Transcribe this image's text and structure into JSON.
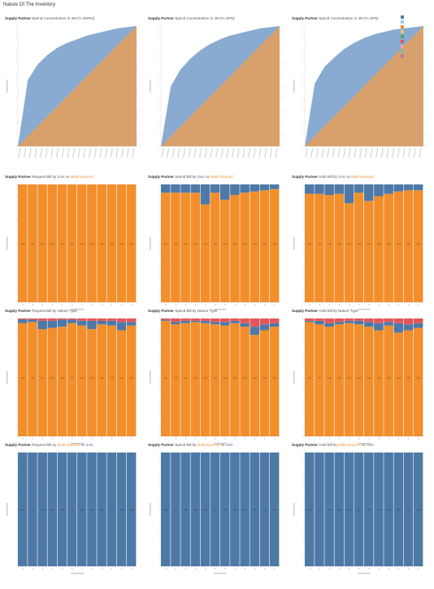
{
  "page_title": "Nature Of The Inventory",
  "colors": {
    "blue": "#4e79a7",
    "orange": "#f28e2b",
    "light_blue": "#89abd1",
    "tan": "#d8a06a",
    "red": "#e15759",
    "pink": "#ff9da7",
    "teal": "#76b7b2"
  },
  "legend": {
    "items": [
      {
        "label": "",
        "color": "#4e79a7"
      },
      {
        "label": "",
        "color": "#a0cbe8"
      },
      {
        "label": "",
        "color": "#f28e2b"
      },
      {
        "label": "",
        "color": "#ffbe7d"
      },
      {
        "label": "",
        "color": "#59a14f"
      },
      {
        "label": "",
        "color": "#e15759"
      },
      {
        "label": "",
        "color": "#ff9da7"
      },
      {
        "label": "",
        "color": "#76b7b2"
      },
      {
        "label": "",
        "color": "#b07aa1"
      },
      {
        "label": "",
        "color": "#d8a06a"
      }
    ]
  },
  "panels": [
    {
      "title_bold": "Supply Partner",
      "title_rest": "Spend Concentration in 4M (% 2WRU)",
      "accent_a": "",
      "accent_b": "",
      "chart_data": {
        "type": "area",
        "style": "concentration",
        "series": [
          {
            "values": [
              0,
              0.55,
              0.68,
              0.76,
              0.82,
              0.86,
              0.89,
              0.92,
              0.94,
              0.96,
              0.98,
              0.99,
              1.0
            ]
          }
        ],
        "ylim": [
          0,
          1
        ]
      }
    },
    {
      "title_bold": "Supply Partner",
      "title_rest": "Spend Concentration in 4M (% SPN)",
      "accent_a": "",
      "accent_b": "",
      "chart_data": {
        "type": "area",
        "style": "concentration",
        "series": [
          {
            "values": [
              0,
              0.5,
              0.64,
              0.73,
              0.8,
              0.85,
              0.89,
              0.92,
              0.94,
              0.96,
              0.98,
              0.99,
              1.0
            ]
          }
        ],
        "ylim": [
          0,
          1
        ]
      }
    },
    {
      "title_bold": "Supply Partner",
      "title_rest": "Spend Concentration in 4M (% SPN)",
      "accent_a": "",
      "accent_b": "",
      "chart_data": {
        "type": "area",
        "style": "concentration",
        "series": [
          {
            "values": [
              0,
              0.52,
              0.66,
              0.74,
              0.81,
              0.86,
              0.9,
              0.93,
              0.95,
              0.97,
              0.98,
              0.99,
              1.0
            ]
          }
        ],
        "ylim": [
          0,
          1
        ]
      }
    },
    {
      "title_bold": "Supply Partner",
      "title_rest": "Request Bill by",
      "accent_a": "Sole",
      "accent_b": "Multi-Sourced",
      "chart_data": {
        "type": "bar",
        "style": "stacked100",
        "ylim": [
          0,
          100
        ],
        "series": [
          {
            "color": "#f28e2b",
            "values": [
              100,
              100,
              100,
              100,
              100,
              100,
              100,
              100,
              100,
              100,
              100,
              100
            ]
          },
          {
            "color": "#4e79a7",
            "values": [
              0,
              0,
              0,
              0,
              0,
              0,
              0,
              0,
              0,
              0,
              0,
              0
            ]
          }
        ]
      }
    },
    {
      "title_bold": "Supply Partner",
      "title_rest": "Spend Bill by",
      "accent_a": "Sole",
      "accent_b": "Multi-Sourced",
      "chart_data": {
        "type": "bar",
        "style": "stacked100",
        "ylim": [
          0,
          100
        ],
        "series": [
          {
            "color": "#f28e2b",
            "values": [
              93,
              93,
              93,
              93,
              83,
              93,
              87,
              91,
              93,
              94,
              95,
              96
            ]
          },
          {
            "color": "#4e79a7",
            "values": [
              7,
              7,
              7,
              7,
              17,
              7,
              13,
              9,
              7,
              6,
              5,
              4
            ]
          }
        ]
      }
    },
    {
      "title_bold": "Supply Partner",
      "title_rest": "Hold Bill by",
      "accent_a": "Sole",
      "accent_b": "Multi-Sourced",
      "chart_data": {
        "type": "bar",
        "style": "stacked100",
        "ylim": [
          0,
          100
        ],
        "series": [
          {
            "color": "#f28e2b",
            "values": [
              92,
              92,
              91,
              92,
              84,
              93,
              86,
              90,
              92,
              94,
              95,
              95
            ]
          },
          {
            "color": "#4e79a7",
            "values": [
              8,
              8,
              9,
              8,
              16,
              7,
              14,
              10,
              8,
              6,
              5,
              5
            ]
          }
        ]
      }
    },
    {
      "title_bold": "Supply Partner",
      "title_rest": "Request Bill by Nature Type",
      "accent_a": "",
      "accent_b": "",
      "chart_data": {
        "type": "bar",
        "style": "stacked100",
        "ylim": [
          0,
          100
        ],
        "series": [
          {
            "color": "#f28e2b",
            "values": [
              96,
              97,
              91,
              92,
              93,
              96,
              94,
              91,
              95,
              94,
              90,
              94
            ]
          },
          {
            "color": "#4e79a7",
            "values": [
              3,
              2,
              7,
              6,
              6,
              3,
              4,
              7,
              3,
              4,
              7,
              3
            ]
          },
          {
            "color": "#e15759",
            "values": [
              1,
              1,
              2,
              2,
              1,
              1,
              2,
              2,
              2,
              2,
              3,
              3
            ]
          }
        ]
      }
    },
    {
      "title_bold": "Supply Partner",
      "title_rest": "Spend Bill by Nature Type",
      "accent_a": "",
      "accent_b": "",
      "chart_data": {
        "type": "bar",
        "style": "stacked100",
        "ylim": [
          0,
          100
        ],
        "series": [
          {
            "color": "#f28e2b",
            "values": [
              98,
              95,
              96,
              97,
              96,
              95,
              94,
              96,
              93,
              86,
              90,
              93
            ]
          },
          {
            "color": "#4e79a7",
            "values": [
              1,
              2,
              2,
              1,
              2,
              2,
              3,
              2,
              3,
              7,
              5,
              3
            ]
          },
          {
            "color": "#e15759",
            "values": [
              1,
              3,
              2,
              2,
              2,
              3,
              3,
              2,
              4,
              7,
              5,
              4
            ]
          }
        ]
      }
    },
    {
      "title_bold": "Supply Partner",
      "title_rest": "Hold Bill by Nature Type",
      "accent_a": "",
      "accent_b": "",
      "chart_data": {
        "type": "bar",
        "style": "stacked100",
        "ylim": [
          0,
          100
        ],
        "series": [
          {
            "color": "#f28e2b",
            "values": [
              97,
              95,
              93,
              95,
              96,
              95,
              93,
              90,
              94,
              88,
              90,
              92
            ]
          },
          {
            "color": "#4e79a7",
            "values": [
              1,
              3,
              3,
              2,
              2,
              3,
              4,
              6,
              3,
              8,
              5,
              4
            ]
          },
          {
            "color": "#e15759",
            "values": [
              2,
              2,
              4,
              3,
              2,
              2,
              3,
              4,
              3,
              4,
              5,
              4
            ]
          }
        ]
      }
    },
    {
      "title_bold": "Supply Partner",
      "title_rest": "Request Bill by",
      "accent_a": "Multi-Sourced",
      "accent_b": "Sole",
      "chart_data": {
        "type": "bar",
        "style": "stacked100",
        "ylim": [
          0,
          100
        ],
        "series": [
          {
            "color": "#4e79a7",
            "values": [
              100,
              100,
              100,
              100,
              100,
              100,
              100,
              100,
              100,
              100,
              100,
              100
            ]
          }
        ]
      }
    },
    {
      "title_bold": "Supply Partner",
      "title_rest": "Spend Bill by",
      "accent_a": "Multi-Sourced",
      "accent_b": "Sole",
      "chart_data": {
        "type": "bar",
        "style": "stacked100",
        "ylim": [
          0,
          100
        ],
        "series": [
          {
            "color": "#4e79a7",
            "values": [
              100,
              100,
              100,
              100,
              100,
              100,
              100,
              100,
              100,
              100,
              100,
              100
            ]
          }
        ]
      }
    },
    {
      "title_bold": "Supply Partner",
      "title_rest": "Hold Bill by",
      "accent_a": "Multi-Sourced",
      "accent_b": "Sole",
      "chart_data": {
        "type": "bar",
        "style": "stacked100",
        "ylim": [
          0,
          100
        ],
        "series": [
          {
            "color": "#4e79a7",
            "values": [
              100,
              100,
              100,
              100,
              100,
              100,
              100,
              100,
              100,
              100,
              100,
              100
            ]
          }
        ]
      }
    }
  ]
}
